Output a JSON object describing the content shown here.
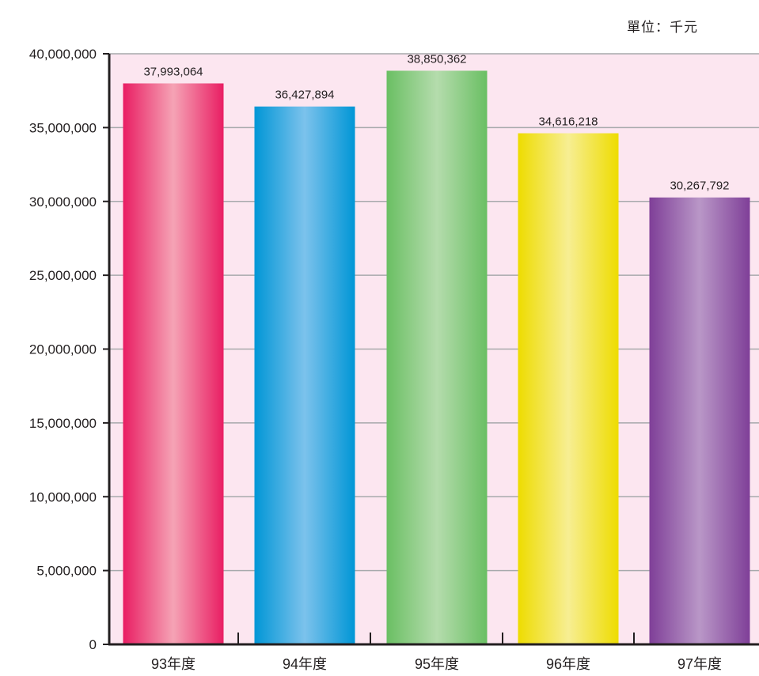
{
  "chart_data": {
    "type": "bar",
    "unit_label": "單位：千元",
    "categories": [
      "93年度",
      "94年度",
      "95年度",
      "96年度",
      "97年度"
    ],
    "values": [
      37993064,
      36427894,
      38850362,
      34616218,
      30267792
    ],
    "value_labels": [
      "37,993,064",
      "36,427,894",
      "38,850,362",
      "34,616,218",
      "30,267,792"
    ],
    "ylim": [
      0,
      40000000
    ],
    "yticks": [
      0,
      5000000,
      10000000,
      15000000,
      20000000,
      25000000,
      30000000,
      35000000,
      40000000
    ],
    "ytick_labels": [
      "0",
      "5,000,000",
      "10,000,000",
      "15,000,000",
      "20,000,000",
      "25,000,000",
      "30,000,000",
      "35,000,000",
      "40,000,000"
    ],
    "grid": true,
    "bar_colors": [
      {
        "edge": "#e91e63",
        "mid": "#f5a3b5"
      },
      {
        "edge": "#0096d6",
        "mid": "#7cc2ec"
      },
      {
        "edge": "#6abf63",
        "mid": "#b5dcad"
      },
      {
        "edge": "#eedc00",
        "mid": "#f7ee93"
      },
      {
        "edge": "#7f3f98",
        "mid": "#b997c7"
      }
    ],
    "plot_background": "#fce6f0",
    "grid_color": "#a7a9ac",
    "axis_color": "#231f20"
  }
}
